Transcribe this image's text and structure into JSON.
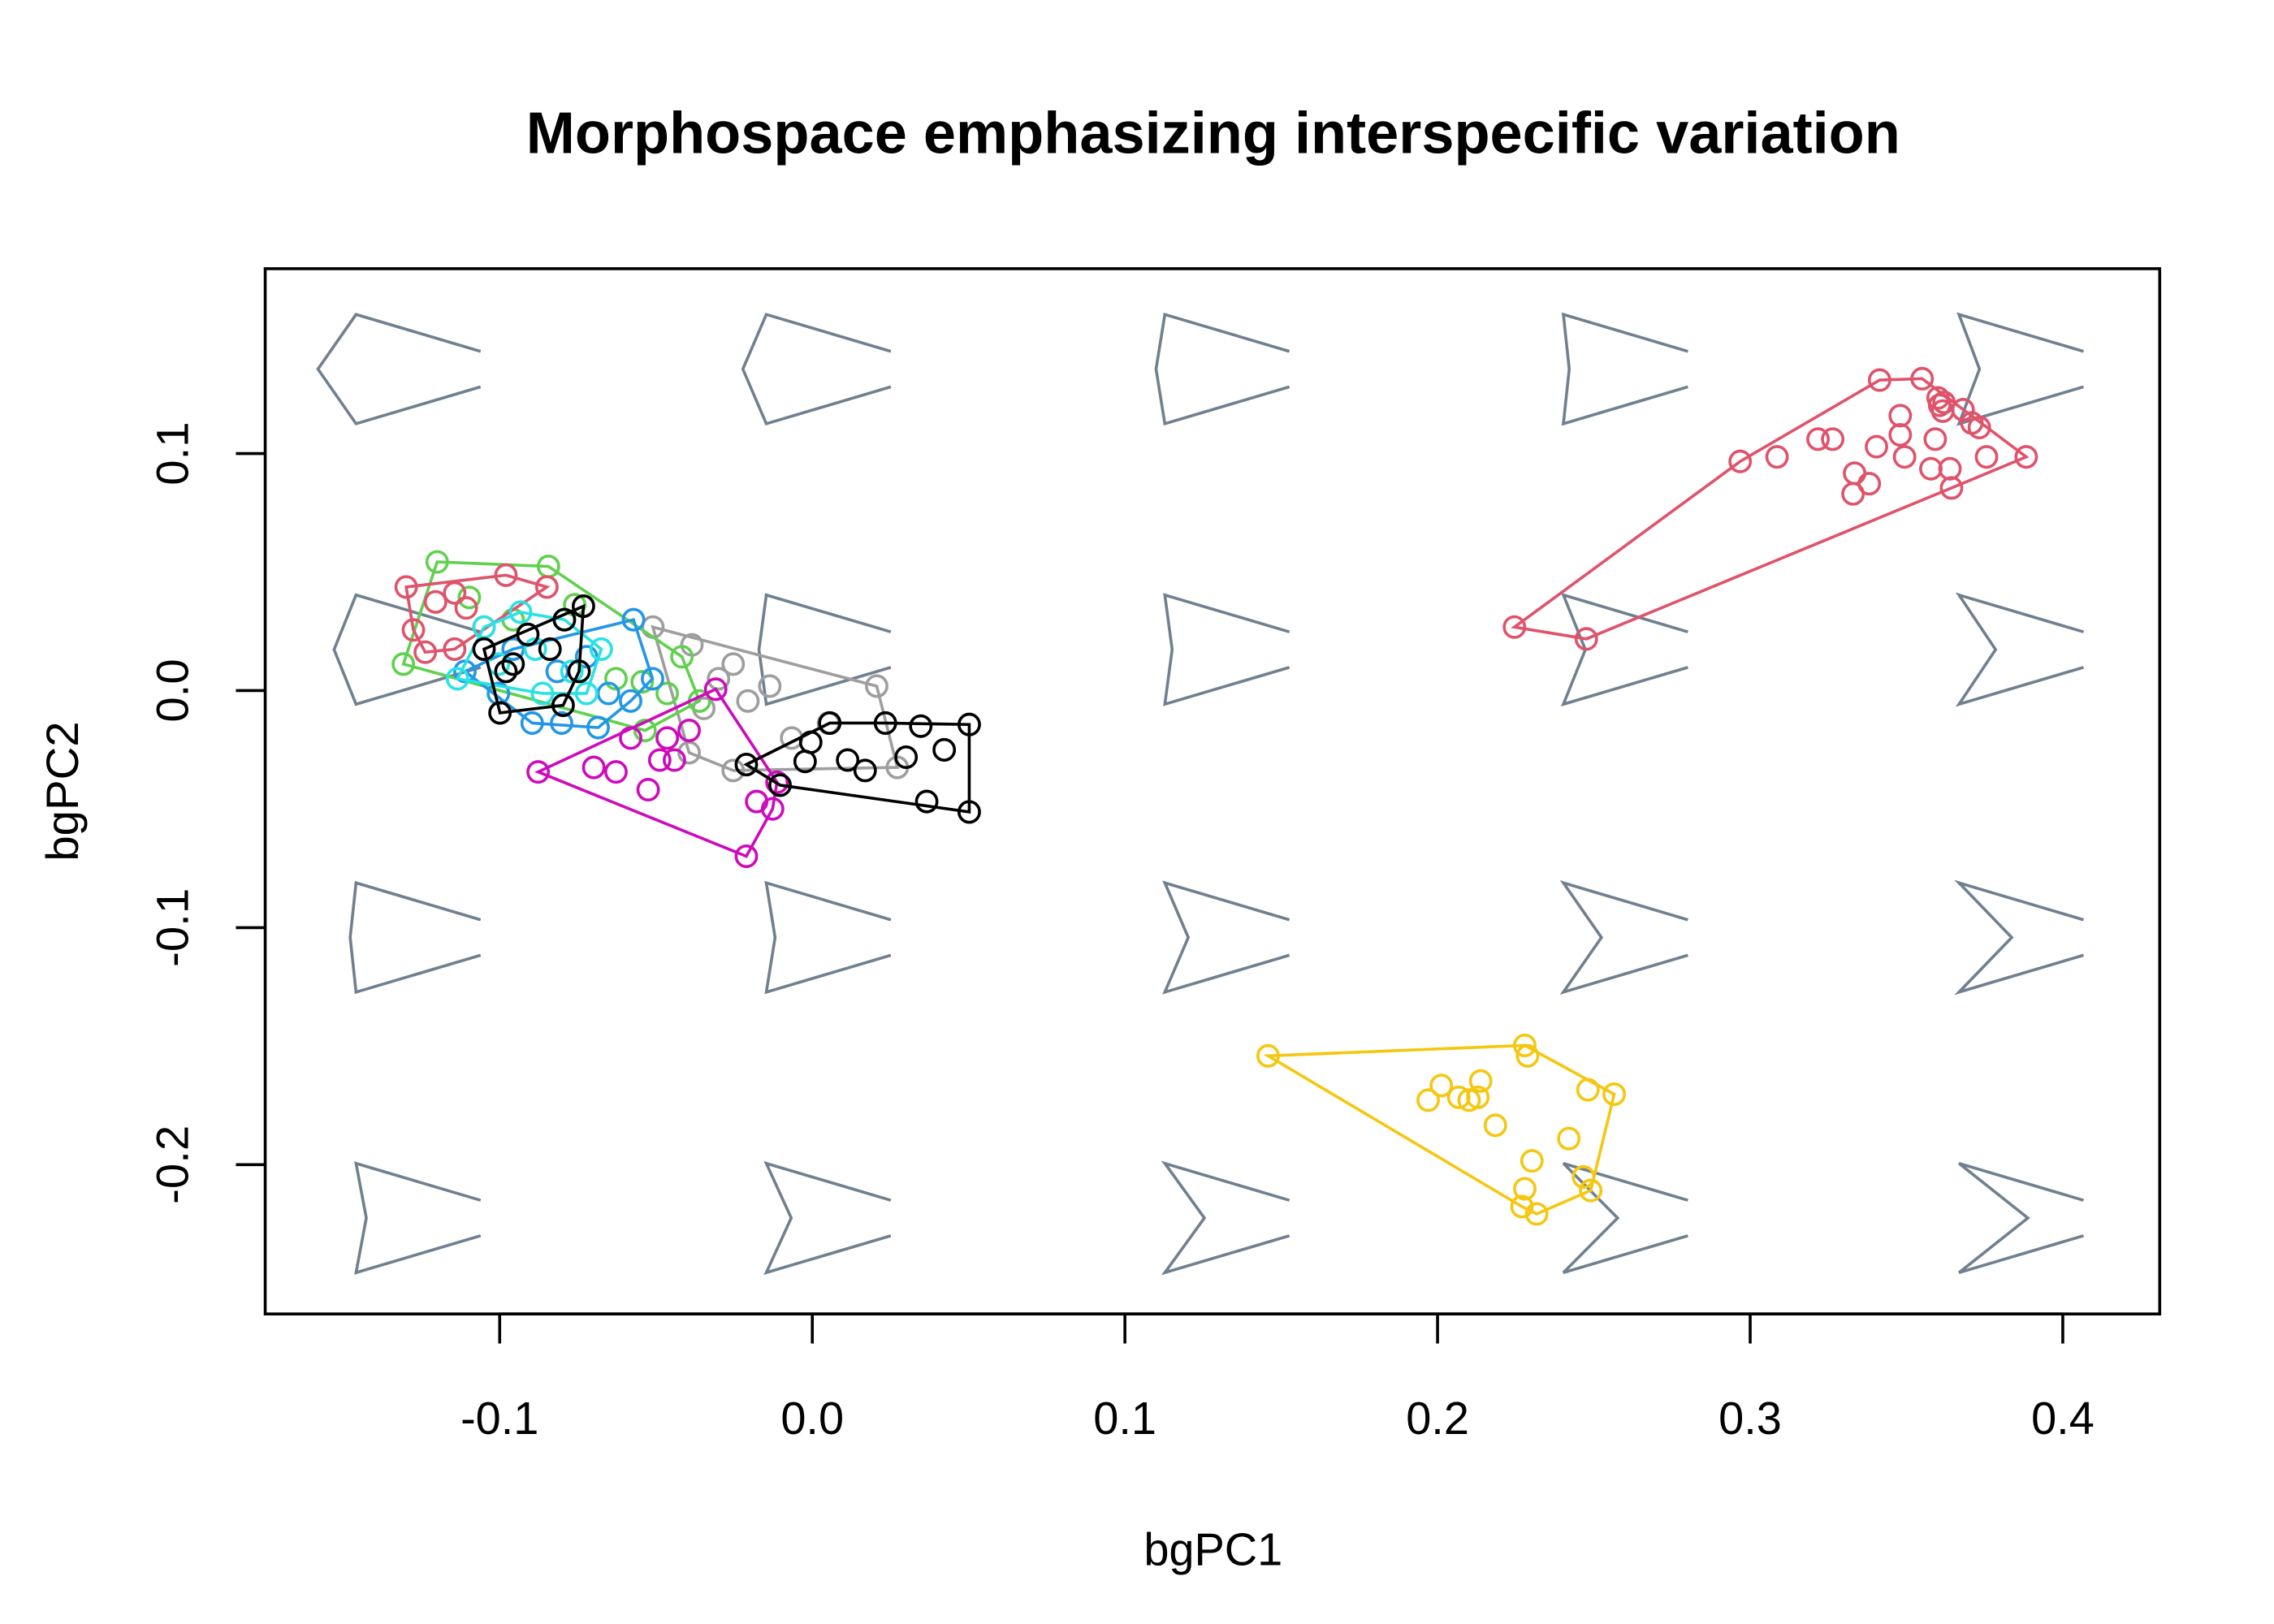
{
  "chart_data": {
    "type": "scatter",
    "title": "Morphospace emphasizing interspecific variation",
    "x_label": "bgPC1",
    "y_label": "bgPC2",
    "xlim": [
      -0.175,
      0.431
    ],
    "ylim": [
      -0.263,
      0.178
    ],
    "xticks": [
      -0.1,
      {
        "value": 0,
        "label": "0.0"
      },
      0.1,
      0.2,
      0.3,
      0.4
    ],
    "yticks": [
      -0.2,
      -0.1,
      {
        "value": 0,
        "label": "0.0"
      },
      0.1
    ],
    "series": [
      {
        "color": "#9E9E9E",
        "x": [
          -0.051,
          -0.0385,
          -0.0253,
          -0.0136,
          0.0206,
          0.0272,
          -0.0253,
          -0.0394,
          -0.0347,
          -0.0206,
          -0.0066,
          0.0052,
          -0.03
        ],
        "values": [
          0.0268,
          0.0193,
          0.0112,
          0.0019,
          0.0019,
          -0.0324,
          -0.0337,
          -0.0262,
          -0.0075,
          -0.0044,
          -0.02,
          -0.0137,
          0.005
        ]
      },
      {
        "color": "#61D04F",
        "x": [
          -0.12,
          -0.1308,
          -0.0844,
          -0.076,
          -0.0544,
          -0.0417,
          -0.0361,
          -0.0535,
          -0.1097,
          -0.0957,
          -0.0628,
          -0.0464
        ],
        "values": [
          0.0543,
          0.0112,
          0.0524,
          0.0362,
          0.0037,
          0.0143,
          -0.0044,
          -0.0168,
          0.0393,
          0.0299,
          0.005,
          -0.0012
        ]
      },
      {
        "color": "#DF536B",
        "x": [
          -0.1299,
          -0.1276,
          -0.1238,
          -0.1205,
          -0.1144,
          -0.1107,
          -0.098,
          -0.0849,
          -0.1144,
          -0.105
        ],
        "values": [
          0.0437,
          0.0256,
          0.0162,
          0.0374,
          0.0412,
          0.0349,
          0.0487,
          0.0437,
          0.0175,
          0.0268
        ]
      },
      {
        "color": "#2297E6",
        "x": [
          -0.1111,
          -0.1004,
          -0.0896,
          -0.0802,
          -0.0685,
          -0.0572,
          -0.0511,
          -0.0581,
          -0.0957,
          -0.0816,
          -0.0722,
          -0.0652
        ],
        "values": [
          0.0081,
          -0.0012,
          -0.0137,
          -0.0137,
          -0.0156,
          0.0299,
          0.005,
          -0.0044,
          0.0175,
          0.0081,
          0.0143,
          -0.0012
        ]
      },
      {
        "color": "#28E2E5",
        "x": [
          -0.1135,
          -0.105,
          -0.0933,
          -0.0793,
          -0.0675,
          -0.0722,
          -0.0863,
          -0.1004,
          -0.0886,
          -0.0769
        ],
        "values": [
          0.005,
          0.0268,
          0.0331,
          0.0299,
          0.0175,
          -0.0012,
          -0.0012,
          0.0112,
          0.0175,
          0.0081
        ]
      },
      {
        "color": "#000000",
        "x": [
          -0.0999,
          -0.0797,
          -0.0732,
          -0.0746,
          -0.0957,
          -0.105,
          -0.091,
          -0.0839,
          -0.0793,
          -0.098
        ],
        "values": [
          -0.0094,
          -0.0062,
          0.0356,
          0.0081,
          0.0112,
          0.0175,
          0.0237,
          0.0175,
          0.0299,
          0.0081
        ]
      },
      {
        "color": "#CD0BBC",
        "x": [
          -0.0877,
          -0.0699,
          -0.0628,
          -0.0525,
          -0.0488,
          -0.0464,
          -0.0394,
          -0.0309,
          -0.0211,
          -0.0178,
          -0.0127,
          -0.0113,
          -0.0581,
          -0.0441
        ],
        "values": [
          -0.0343,
          -0.0324,
          -0.0343,
          -0.0418,
          -0.0293,
          -0.02,
          -0.0168,
          0.0006,
          -0.0699,
          -0.0468,
          -0.0499,
          -0.0387,
          -0.02,
          -0.0293
        ]
      },
      {
        "color": "#000000",
        "x": [
          -0.0211,
          -0.0103,
          -0.0023,
          -0.0005,
          0.0056,
          0.0113,
          0.0169,
          0.0234,
          0.03,
          0.0347,
          0.0366,
          0.0422,
          0.0502,
          0.0502
        ],
        "values": [
          -0.0312,
          -0.0399,
          -0.0299,
          -0.0218,
          -0.0137,
          -0.0293,
          -0.0337,
          -0.0137,
          -0.0281,
          -0.015,
          -0.0468,
          -0.025,
          -0.0143,
          -0.0512
        ]
      },
      {
        "color": "#DF536B",
        "x": [
          0.2246,
          0.2476,
          0.2968,
          0.3086,
          0.3217,
          0.3264,
          0.3334,
          0.3381,
          0.3329,
          0.3414,
          0.3404,
          0.348,
          0.348,
          0.3494,
          0.355,
          0.3578,
          0.3592,
          0.3601,
          0.3606,
          0.3616,
          0.362,
          0.3639,
          0.3644,
          0.3681,
          0.3709,
          0.3733,
          0.3756,
          0.3883
        ],
        "values": [
          0.0268,
          0.0218,
          0.0967,
          0.0986,
          0.1061,
          0.1061,
          0.0917,
          0.0873,
          0.083,
          0.131,
          0.1029,
          0.116,
          0.1079,
          0.0986,
          0.1316,
          0.0936,
          0.1061,
          0.1235,
          0.1204,
          0.1179,
          0.1216,
          0.0936,
          0.0855,
          0.1185,
          0.1129,
          0.111,
          0.0986,
          0.0986
        ]
      },
      {
        "color": "#F5C710",
        "x": [
          0.1458,
          0.197,
          0.2012,
          0.2068,
          0.2101,
          0.2138,
          0.2185,
          0.2129,
          0.2279,
          0.2288,
          0.2302,
          0.2279,
          0.2317,
          0.227,
          0.242,
          0.2467,
          0.2481,
          0.249,
          0.2565
        ],
        "values": [
          -0.1541,
          -0.1728,
          -0.1666,
          -0.1716,
          -0.1728,
          -0.1647,
          -0.1834,
          -0.1716,
          -0.1497,
          -0.1541,
          -0.1984,
          -0.2102,
          -0.2208,
          -0.2177,
          -0.189,
          -0.2052,
          -0.1684,
          -0.2109,
          -0.1703
        ]
      }
    ]
  }
}
